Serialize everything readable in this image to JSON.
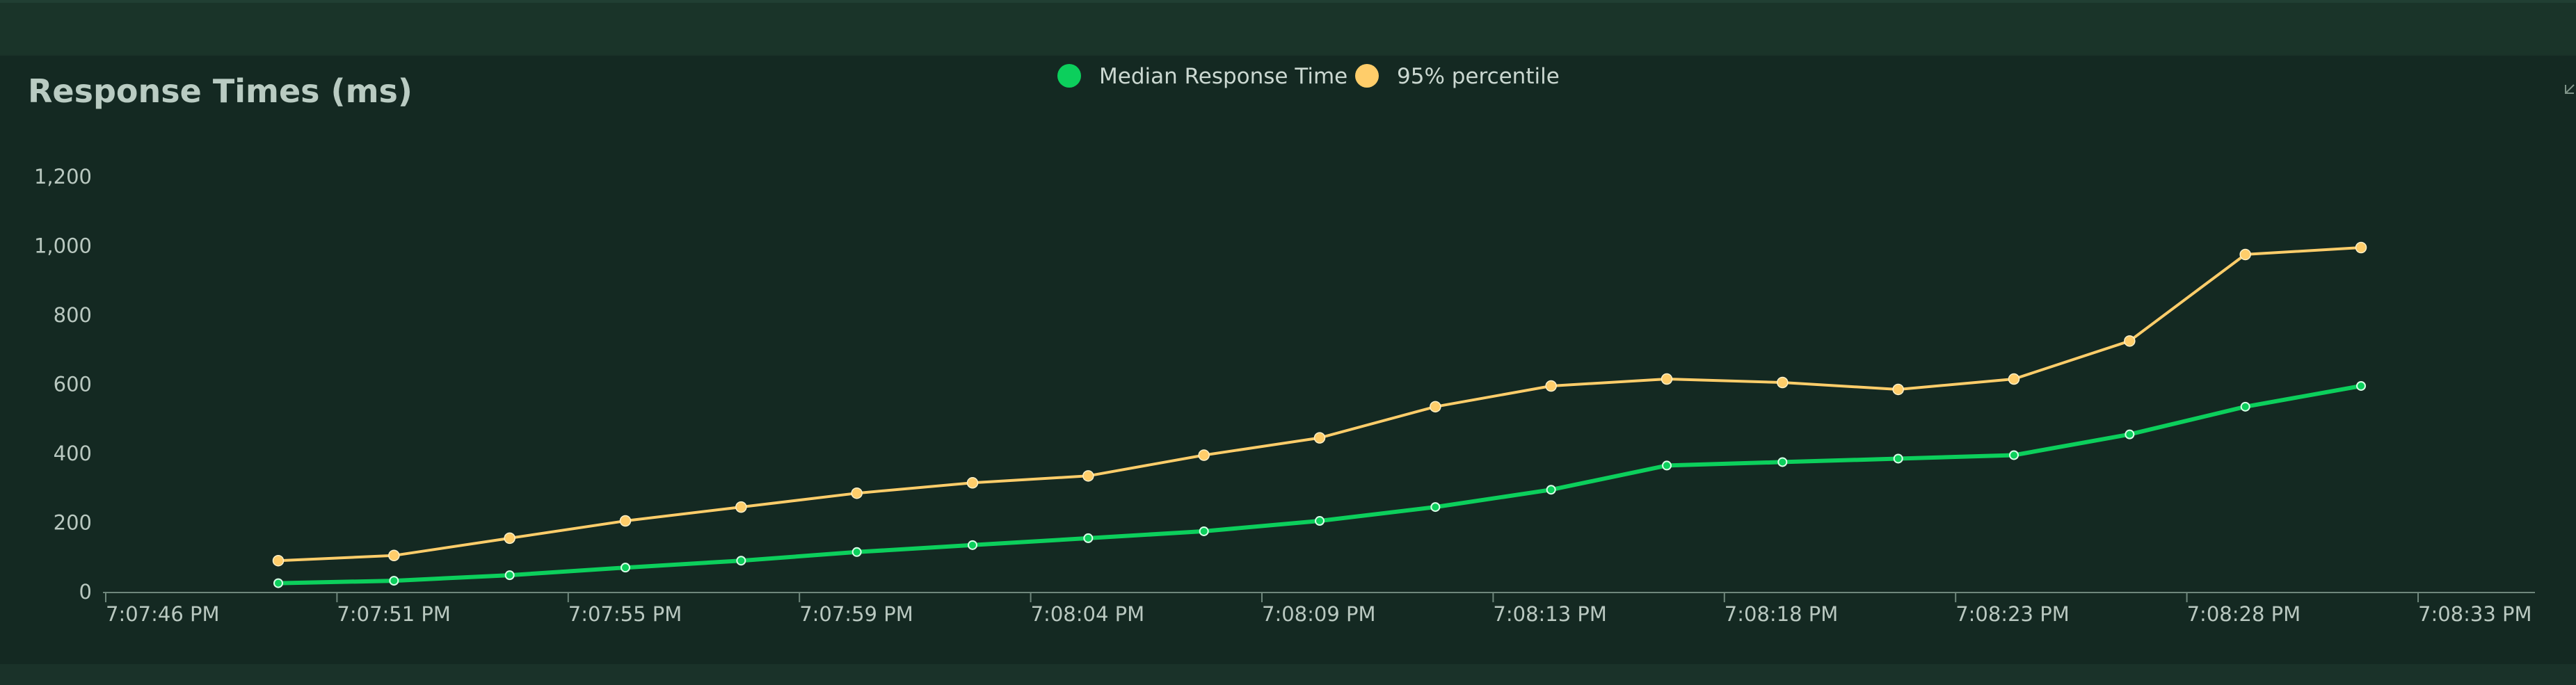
{
  "chart_data": {
    "type": "line",
    "title": "Response Times (ms)",
    "xlabel": "",
    "ylabel": "",
    "x_ticks": [
      "7:07:46 PM",
      "7:07:51 PM",
      "7:07:55 PM",
      "7:07:59 PM",
      "7:08:04 PM",
      "7:08:09 PM",
      "7:08:13 PM",
      "7:08:18 PM",
      "7:08:23 PM",
      "7:08:28 PM",
      "7:08:33 PM"
    ],
    "y_ticks": [
      "0",
      "200",
      "400",
      "600",
      "800",
      "1,000",
      "1,200"
    ],
    "ylim": [
      0,
      1200
    ],
    "grid": false,
    "legend_position": "top-center",
    "series": [
      {
        "name": "Median Response Time",
        "color": "#0ccf5c",
        "values": [
          25,
          32,
          48,
          70,
          90,
          115,
          135,
          155,
          175,
          205,
          245,
          295,
          365,
          375,
          385,
          395,
          455,
          535,
          595
        ]
      },
      {
        "name": "95% percentile",
        "color": "#ffcd6a",
        "values": [
          90,
          105,
          155,
          205,
          245,
          285,
          315,
          335,
          395,
          445,
          535,
          595,
          615,
          605,
          585,
          615,
          725,
          975,
          995
        ]
      }
    ]
  }
}
